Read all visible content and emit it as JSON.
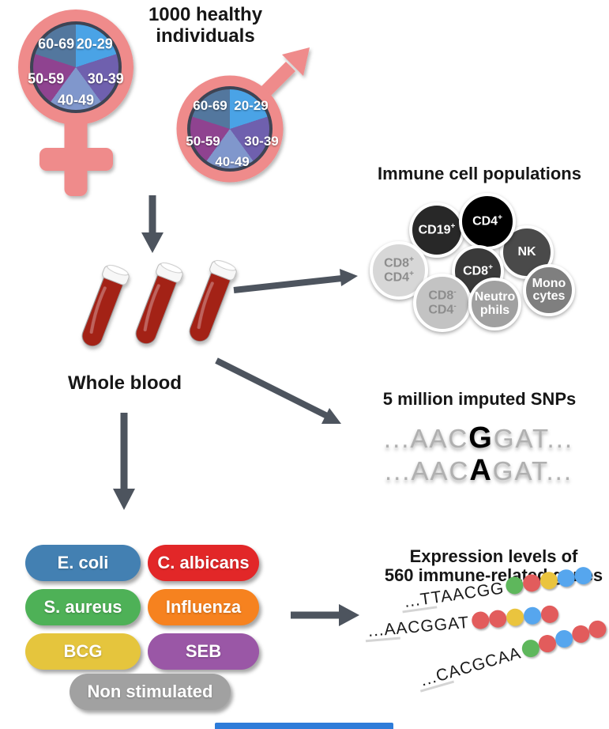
{
  "title": {
    "line1": "1000 healthy",
    "line2": "individuals"
  },
  "demographics": {
    "age_groups": [
      "20-29",
      "30-39",
      "40-49",
      "50-59",
      "60-69"
    ],
    "slice_colors": {
      "20-29": "#4aa3e6",
      "30-39": "#6f60ae",
      "40-49": "#8097cc",
      "50-59": "#8f4390",
      "60-69": "#53779e"
    },
    "symbol_color": "#ef8b8b",
    "symbols": [
      "female",
      "male"
    ]
  },
  "whole_blood": {
    "label": "Whole blood",
    "tube_color": "#a32018"
  },
  "immune_cells": {
    "title": "Immune cell populations",
    "cells": {
      "cd19": {
        "text": "CD19",
        "sup": "+",
        "bg": "#282828"
      },
      "cd4": {
        "text": "CD4",
        "sup": "+",
        "bg": "#000000"
      },
      "nk": {
        "text": "NK",
        "bg": "#4a4a4a"
      },
      "cd8": {
        "text": "CD8",
        "sup": "+",
        "bg": "#3a3a3a"
      },
      "cd8p_cd4p": {
        "line1": "CD8",
        "sup1": "+",
        "line2": "CD4",
        "sup2": "+",
        "bg": "#d7d7d7",
        "fg": "#8d8d8d"
      },
      "cd8m_cd4m": {
        "line1": "CD8",
        "sup1": "-",
        "line2": "CD4",
        "sup2": "-",
        "bg": "#c3c3c3",
        "fg": "#8d8d8d"
      },
      "neutrophils": {
        "line1": "Neutro",
        "line2": "phils",
        "bg": "#a0a0a0"
      },
      "monocytes": {
        "line1": "Mono",
        "line2": "cytes",
        "bg": "#7f7f7f"
      }
    }
  },
  "snps": {
    "title": "5 million imputed SNPs",
    "rows": [
      {
        "pre": "...AAC",
        "variant": "G",
        "post": "GAT..."
      },
      {
        "pre": "...AAC",
        "variant": "A",
        "post": "GAT..."
      }
    ]
  },
  "stimuli": {
    "items": [
      {
        "label": "E. coli",
        "color": "#4380b2"
      },
      {
        "label": "C. albicans",
        "color": "#e22728"
      },
      {
        "label": "S. aureus",
        "color": "#4eb157"
      },
      {
        "label": "Influenza",
        "color": "#f6821f"
      },
      {
        "label": "BCG",
        "color": "#e5c53d"
      },
      {
        "label": "SEB",
        "color": "#9a57a6"
      },
      {
        "label": "Non stimulated",
        "color": "#a1a1a1"
      }
    ]
  },
  "expression": {
    "title_line1": "Expression levels of",
    "title_line2": "560 immune-related genes",
    "dot_colors": {
      "green": "#5eb75c",
      "red": "#e25c5c",
      "yellow": "#eac43e",
      "blue": "#56a6ee"
    },
    "rows": [
      {
        "seq": "...TTAACGG",
        "dots": [
          "green",
          "red",
          "yellow",
          "blue",
          "blue"
        ]
      },
      {
        "seq": "...AACGGAT",
        "dots": [
          "red",
          "red",
          "yellow",
          "blue",
          "red"
        ]
      },
      {
        "seq": "...CACGCAA",
        "dots": [
          "green",
          "red",
          "blue",
          "red",
          "red"
        ]
      }
    ]
  },
  "arrow_color": "#4d545e",
  "bottom_bar_color": "#2e7cd9"
}
